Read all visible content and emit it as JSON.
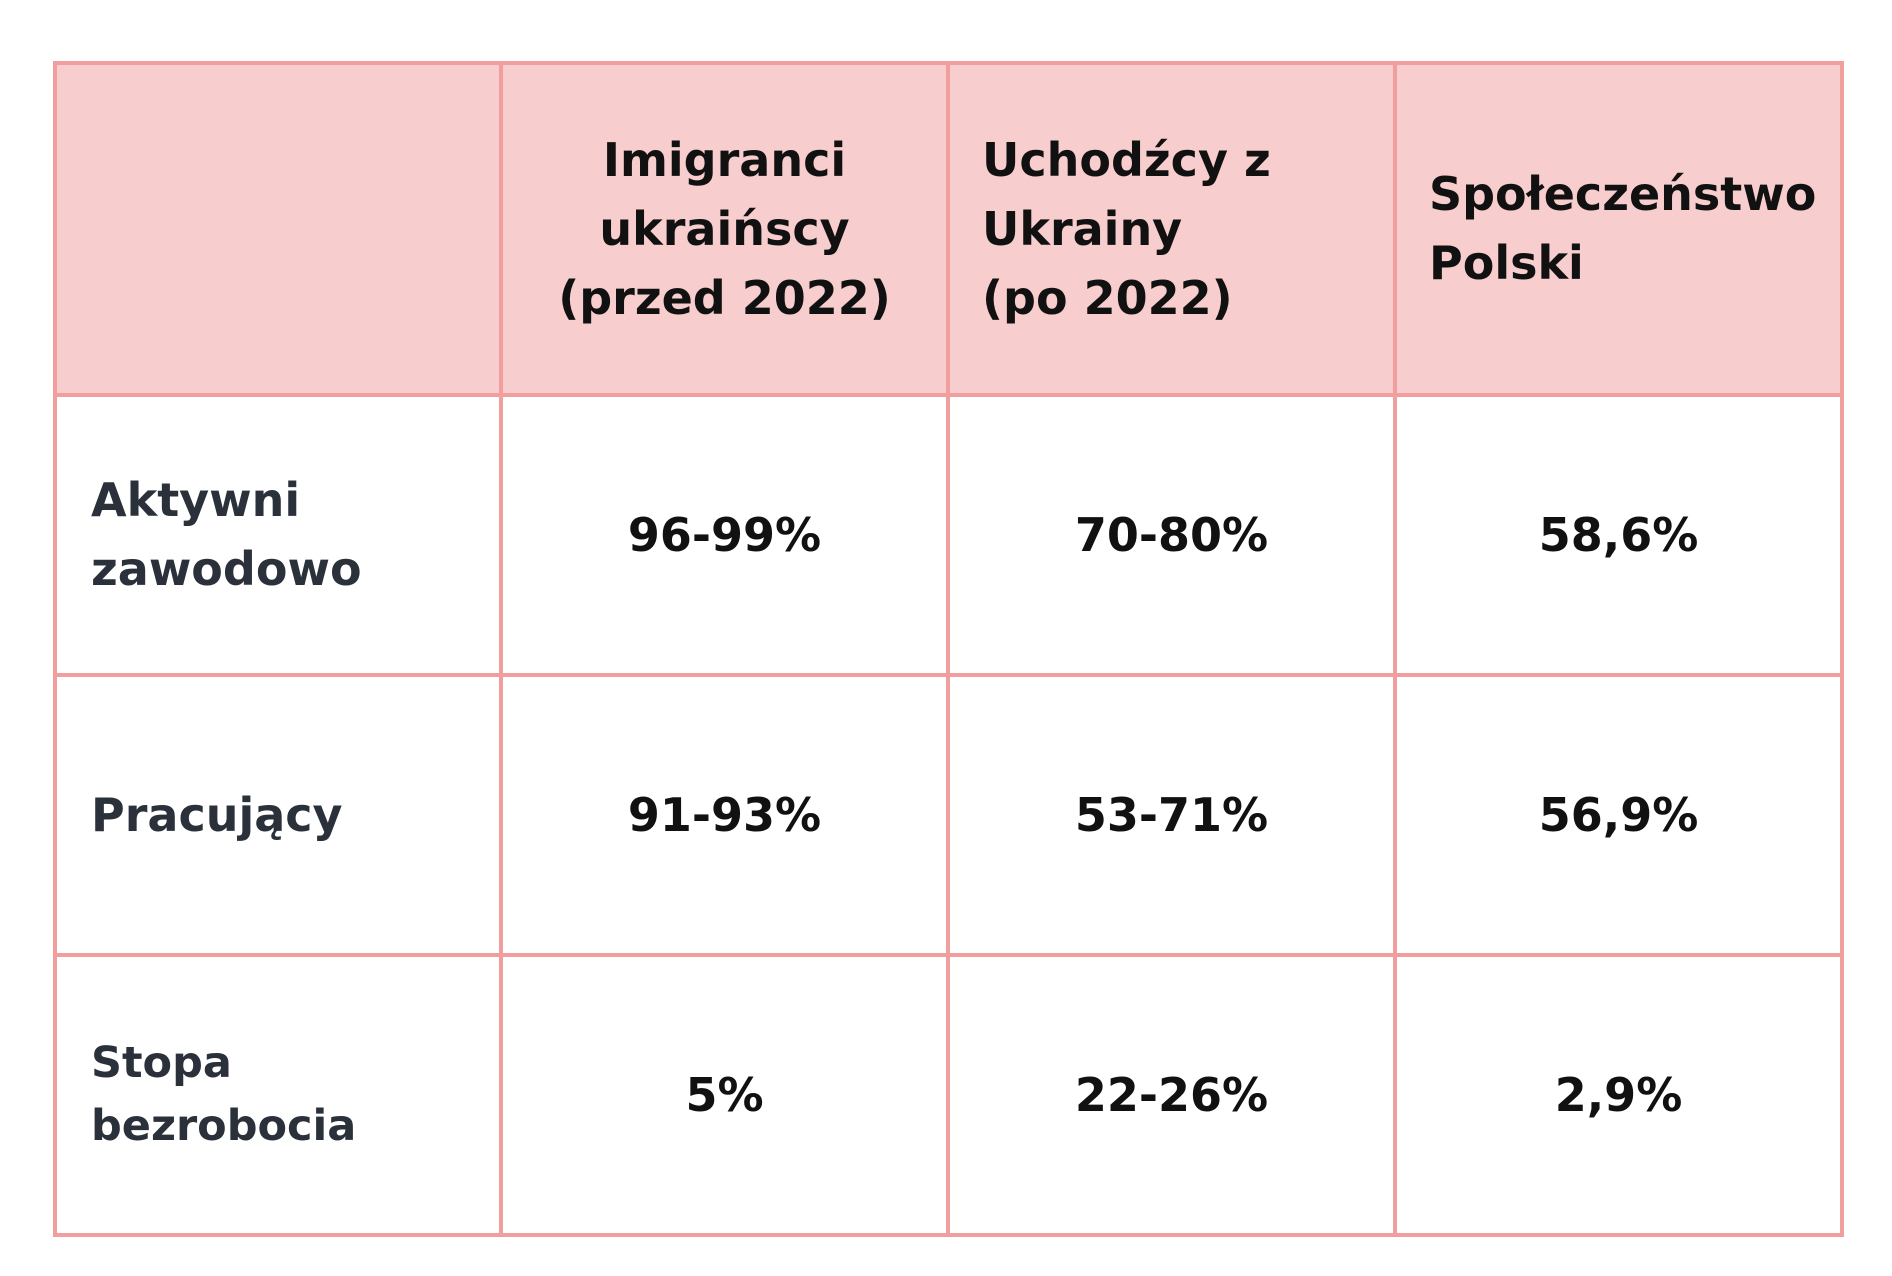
{
  "table": {
    "headers": [
      "",
      [
        "Imigranci",
        "ukraińscy",
        "(przed 2022)"
      ],
      [
        "Uchodźcy z",
        "Ukrainy",
        "(po 2022)"
      ],
      [
        "Społeczeństwo",
        "Polski"
      ]
    ],
    "rows": [
      {
        "label": [
          "Aktywni",
          "zawodowo"
        ],
        "values": [
          "96-99%",
          "70-80%",
          "58,6%"
        ]
      },
      {
        "label": [
          "Pracujący"
        ],
        "values": [
          "91-93%",
          "53-71%",
          "56,9%"
        ]
      },
      {
        "label": [
          "Stopa",
          "bezrobocia"
        ],
        "values": [
          "5%",
          "22-26%",
          "2,9%"
        ]
      }
    ]
  },
  "colors": {
    "border": "#f09e9e",
    "header_bg": "#f7cdcd",
    "label_text": "#2b313b",
    "value_text": "#111111"
  }
}
